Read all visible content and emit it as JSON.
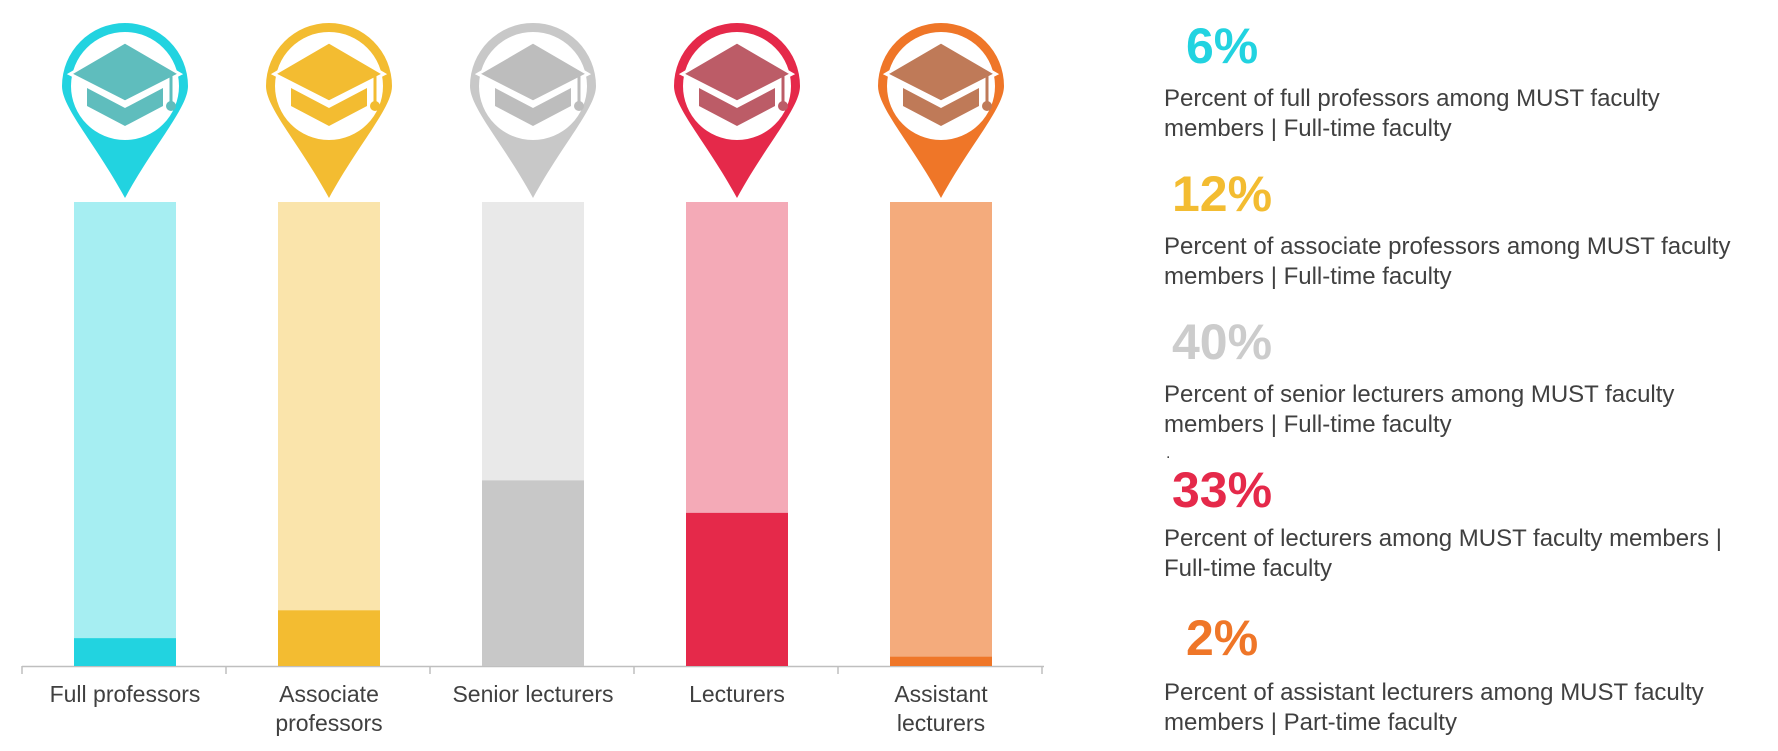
{
  "chart_data": {
    "type": "bar",
    "categories": [
      "Full professors",
      "Associate\nprofessors",
      "Senior lecturers",
      "Lecturers",
      "Assistant\nlecturers"
    ],
    "values": [
      6,
      12,
      40,
      33,
      2
    ],
    "ylim": [
      0,
      100
    ],
    "colors": [
      "#22d3e0",
      "#f3bc31",
      "#c8c8c8",
      "#e5294a",
      "#ef7628"
    ],
    "light_colors": [
      "#a6eef2",
      "#fae4ab",
      "#e9e9e9",
      "#f4aab7",
      "#f4ab7c"
    ],
    "icon_colors": [
      "#5fbdbd",
      "#f3bc31",
      "#bdbdbd",
      "#bc5c67",
      "#bf7a58"
    ],
    "grid": false,
    "legend": "none"
  },
  "stats": [
    {
      "value": "6%",
      "desc": "Percent of full professors among MUST faculty members | Full-time faculty"
    },
    {
      "value": "12%",
      "desc": "Percent of associate professors among MUST faculty members | Full-time faculty"
    },
    {
      "value": "40%",
      "desc": "Percent of senior lecturers among MUST faculty members | Full-time faculty"
    },
    {
      "value": "33%",
      "desc": "Percent of lecturers among MUST faculty members | Full-time faculty"
    },
    {
      "value": "2%",
      "desc": "Percent of assistant lecturers among MUST faculty members | Part-time faculty"
    }
  ],
  "stray_mark": ".",
  "icons": [
    "map-pin-icon",
    "graduation-cap-icon"
  ]
}
